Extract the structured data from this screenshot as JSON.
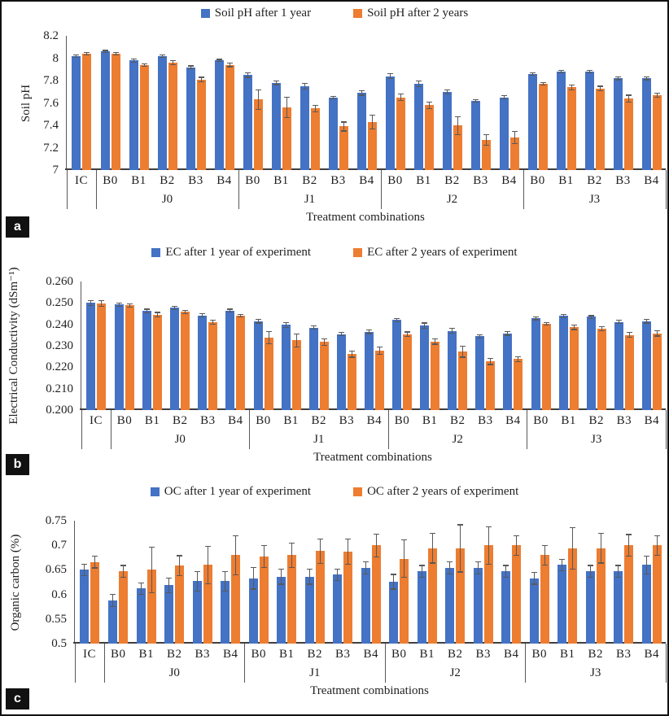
{
  "colors": {
    "series1": "#4472C4",
    "series2": "#ED7D31",
    "error_bar": "#595959",
    "axis_line": "#3f3f3f",
    "panel_label_bg": "#111111"
  },
  "chart_data": [
    {
      "type": "bar",
      "panel_label": "a",
      "ylabel": "Soil pH",
      "xlabel": "Treatment combinations",
      "legend_position": "top",
      "grid": false,
      "ylim": [
        7,
        8.2
      ],
      "ytick_labels": [
        "8.2",
        "8",
        "7.8",
        "7.6",
        "7.4",
        "7.2",
        "7"
      ],
      "groups": [
        {
          "label": "",
          "categories": [
            "IC"
          ]
        },
        {
          "label": "J0",
          "categories": [
            "B0",
            "B1",
            "B2",
            "B3",
            "B4"
          ]
        },
        {
          "label": "J1",
          "categories": [
            "B0",
            "B1",
            "B2",
            "B3",
            "B4"
          ]
        },
        {
          "label": "J2",
          "categories": [
            "B0",
            "B1",
            "B2",
            "B3",
            "B4"
          ]
        },
        {
          "label": "J3",
          "categories": [
            "B0",
            "B1",
            "B2",
            "B3",
            "B4"
          ]
        }
      ],
      "series": [
        {
          "name": "Soil pH after 1 year",
          "color": "#4472C4",
          "values": [
            8.02,
            8.06,
            7.98,
            8.02,
            7.92,
            7.98,
            7.85,
            7.78,
            7.75,
            7.65,
            7.69,
            7.84,
            7.77,
            7.7,
            7.62,
            7.65,
            7.86,
            7.88,
            7.88,
            7.82,
            7.82
          ],
          "errors": [
            0.01,
            0.01,
            0.015,
            0.01,
            0.012,
            0.01,
            0.02,
            0.015,
            0.025,
            0.01,
            0.02,
            0.02,
            0.025,
            0.02,
            0.012,
            0.015,
            0.01,
            0.012,
            0.01,
            0.012,
            0.012
          ]
        },
        {
          "name": "Soil pH after 2 years",
          "color": "#ED7D31",
          "values": [
            8.04,
            8.04,
            7.94,
            7.96,
            7.81,
            7.94,
            7.63,
            7.56,
            7.55,
            7.39,
            7.43,
            7.65,
            7.58,
            7.4,
            7.27,
            7.29,
            7.77,
            7.74,
            7.73,
            7.64,
            7.67
          ],
          "errors": [
            0.01,
            0.01,
            0.012,
            0.02,
            0.02,
            0.015,
            0.085,
            0.09,
            0.03,
            0.04,
            0.06,
            0.03,
            0.03,
            0.08,
            0.05,
            0.055,
            0.012,
            0.02,
            0.02,
            0.03,
            0.02
          ]
        }
      ]
    },
    {
      "type": "bar",
      "panel_label": "b",
      "ylabel": "Electrical Conductivity (dSm⁻¹)",
      "xlabel": "Treatment combinations",
      "legend_position": "top",
      "grid": false,
      "ylim": [
        0.2,
        0.26
      ],
      "ytick_labels": [
        "0.260",
        "0.250",
        "0.240",
        "0.230",
        "0.220",
        "0.210",
        "0.200"
      ],
      "groups": [
        {
          "label": "",
          "categories": [
            "IC"
          ]
        },
        {
          "label": "J0",
          "categories": [
            "B0",
            "B1",
            "B2",
            "B3",
            "B4"
          ]
        },
        {
          "label": "J1",
          "categories": [
            "B0",
            "B1",
            "B2",
            "B3",
            "B4"
          ]
        },
        {
          "label": "J2",
          "categories": [
            "B0",
            "B1",
            "B2",
            "B3",
            "B4"
          ]
        },
        {
          "label": "J3",
          "categories": [
            "B0",
            "B1",
            "B2",
            "B3",
            "B4"
          ]
        }
      ],
      "series": [
        {
          "name": "EC after 1 year of experiment",
          "color": "#4472C4",
          "values": [
            0.25,
            0.2492,
            0.2463,
            0.2478,
            0.2442,
            0.2465,
            0.2415,
            0.2398,
            0.2385,
            0.2355,
            0.2365,
            0.242,
            0.2395,
            0.237,
            0.2345,
            0.2358,
            0.2428,
            0.244,
            0.2435,
            0.2412,
            0.2415
          ],
          "errors": [
            0.0012,
            0.0008,
            0.0008,
            0.0008,
            0.0008,
            0.0006,
            0.0008,
            0.0012,
            0.0008,
            0.0008,
            0.0008,
            0.0008,
            0.0012,
            0.0012,
            0.0008,
            0.0008,
            0.0006,
            0.0008,
            0.0006,
            0.0008,
            0.0008
          ]
        },
        {
          "name": "EC after 2 years of experiment",
          "color": "#ED7D31",
          "values": [
            0.2498,
            0.2488,
            0.2446,
            0.2458,
            0.241,
            0.2442,
            0.2338,
            0.2325,
            0.2318,
            0.2262,
            0.2278,
            0.2355,
            0.232,
            0.2272,
            0.2228,
            0.2238,
            0.2403,
            0.2386,
            0.2381,
            0.2351,
            0.2358
          ],
          "errors": [
            0.0012,
            0.0008,
            0.001,
            0.0008,
            0.001,
            0.0006,
            0.0028,
            0.003,
            0.0015,
            0.0015,
            0.0018,
            0.001,
            0.0012,
            0.0025,
            0.0015,
            0.0012,
            0.0006,
            0.001,
            0.001,
            0.0012,
            0.0012
          ]
        }
      ]
    },
    {
      "type": "bar",
      "panel_label": "c",
      "ylabel": "Organic carbon (%)",
      "xlabel": "Treatment combinations",
      "legend_position": "top",
      "grid": false,
      "ylim": [
        0.5,
        0.75
      ],
      "ytick_labels": [
        "0.75",
        "0.7",
        "0.65",
        "0.6",
        "0.55",
        "0.5"
      ],
      "groups": [
        {
          "label": "",
          "categories": [
            "IC"
          ]
        },
        {
          "label": "J0",
          "categories": [
            "B0",
            "B1",
            "B2",
            "B3",
            "B4"
          ]
        },
        {
          "label": "J1",
          "categories": [
            "B0",
            "B1",
            "B2",
            "B3",
            "B4"
          ]
        },
        {
          "label": "J2",
          "categories": [
            "B0",
            "B1",
            "B2",
            "B3",
            "B4"
          ]
        },
        {
          "label": "J3",
          "categories": [
            "B0",
            "B1",
            "B2",
            "B3",
            "B4"
          ]
        }
      ],
      "series": [
        {
          "name": "OC after 1 year of experiment",
          "color": "#4472C4",
          "values": [
            0.65,
            0.588,
            0.612,
            0.619,
            0.627,
            0.627,
            0.633,
            0.636,
            0.636,
            0.64,
            0.654,
            0.626,
            0.647,
            0.654,
            0.654,
            0.647,
            0.633,
            0.66,
            0.647,
            0.647,
            0.66
          ],
          "errors": [
            0.012,
            0.012,
            0.012,
            0.015,
            0.02,
            0.02,
            0.022,
            0.015,
            0.015,
            0.012,
            0.012,
            0.015,
            0.012,
            0.012,
            0.012,
            0.012,
            0.012,
            0.012,
            0.012,
            0.012,
            0.018
          ]
        },
        {
          "name": "OC after 2 years of experiment",
          "color": "#ED7D31",
          "values": [
            0.666,
            0.647,
            0.65,
            0.659,
            0.66,
            0.68,
            0.677,
            0.68,
            0.688,
            0.687,
            0.7,
            0.673,
            0.694,
            0.694,
            0.7,
            0.7,
            0.68,
            0.694,
            0.694,
            0.7,
            0.7
          ],
          "errors": [
            0.012,
            0.012,
            0.047,
            0.02,
            0.038,
            0.04,
            0.022,
            0.025,
            0.025,
            0.026,
            0.023,
            0.038,
            0.03,
            0.048,
            0.038,
            0.02,
            0.02,
            0.042,
            0.03,
            0.022,
            0.02
          ]
        }
      ]
    }
  ]
}
